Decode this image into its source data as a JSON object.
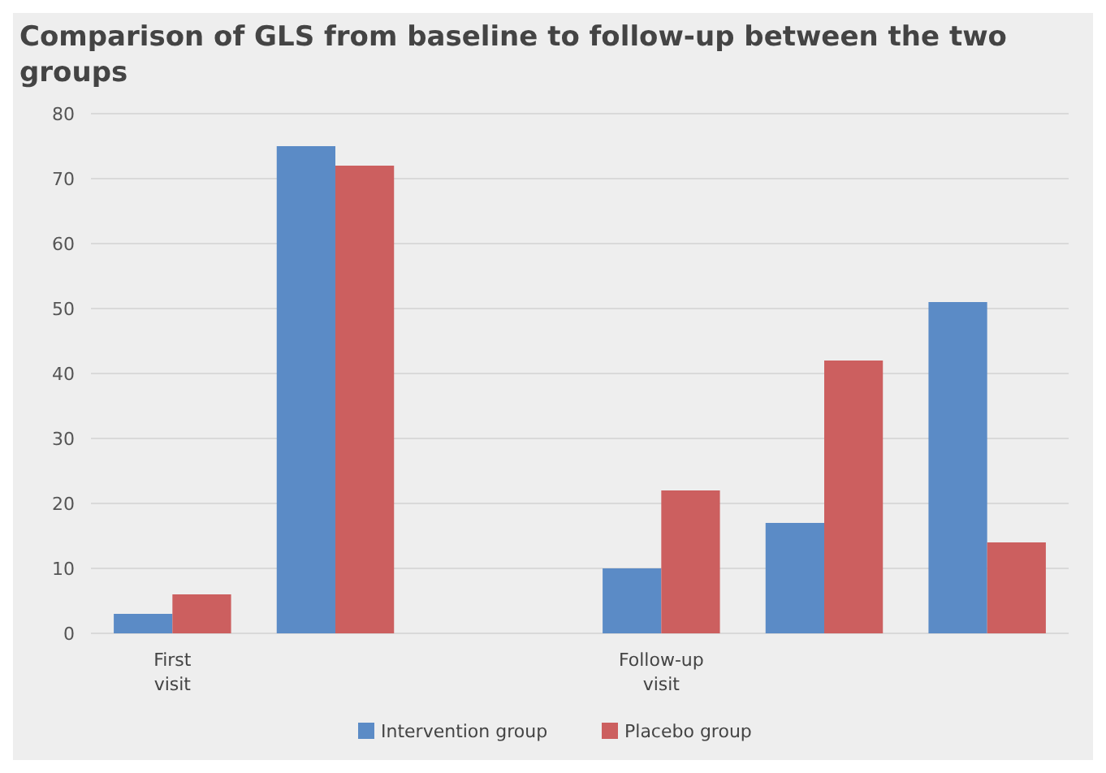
{
  "chart_data": {
    "type": "bar",
    "title": "Comparison of GLS from baseline to follow-up between the two groups",
    "categories": [
      "First visit",
      null,
      null,
      "Follow-up visit",
      null,
      null
    ],
    "series": [
      {
        "name": "Intervention group",
        "color": "#5b8bc6",
        "values": [
          3,
          75,
          null,
          10,
          17,
          51
        ]
      },
      {
        "name": "Placebo group",
        "color": "#cc5f5f",
        "values": [
          6,
          72,
          null,
          22,
          42,
          14
        ]
      }
    ],
    "ylim": [
      0,
      80
    ],
    "yticks": [
      0,
      10,
      20,
      30,
      40,
      50,
      60,
      70,
      80
    ],
    "grid": "y",
    "legend": "bottom"
  }
}
